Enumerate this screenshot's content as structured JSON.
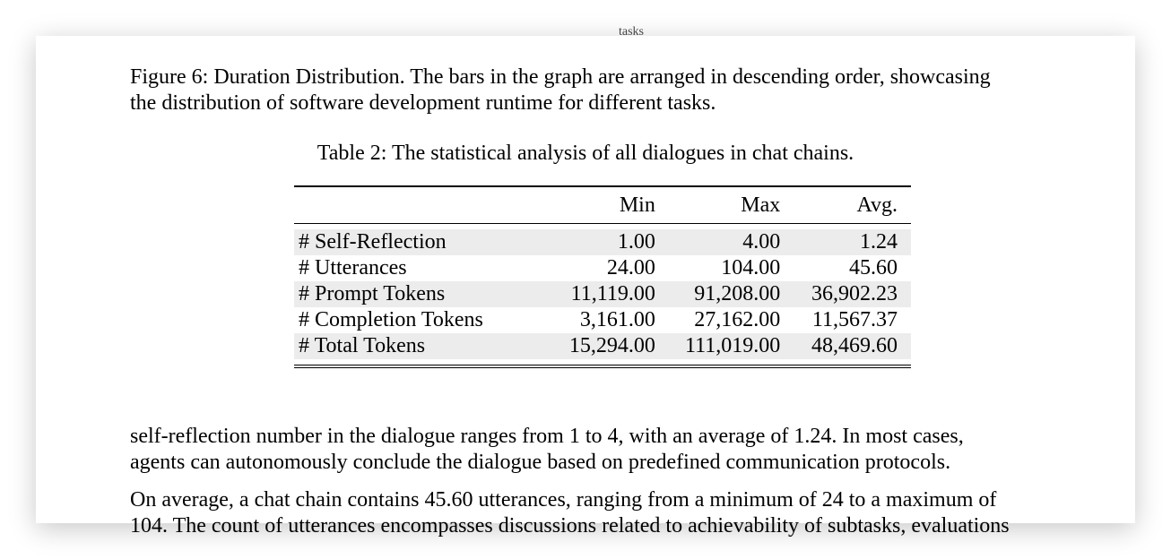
{
  "header_fragment": "tasks",
  "figure_caption": {
    "lines": [
      "Figure 6: Duration Distribution. The bars in the graph are arranged in descending order, showcasing",
      "the distribution of software development runtime for different tasks."
    ]
  },
  "table": {
    "caption": "Table 2: The statistical analysis of all dialogues in chat chains.",
    "columns": [
      "",
      "Min",
      "Max",
      "Avg."
    ],
    "rows": [
      [
        "# Self-Reflection",
        "1.00",
        "4.00",
        "1.24"
      ],
      [
        "# Utterances",
        "24.00",
        "104.00",
        "45.60"
      ],
      [
        "# Prompt Tokens",
        "11,119.00",
        "91,208.00",
        "36,902.23"
      ],
      [
        "# Completion Tokens",
        "3,161.00",
        "27,162.00",
        "11,567.37"
      ],
      [
        "# Total Tokens",
        "15,294.00",
        "111,019.00",
        "48,469.60"
      ]
    ]
  },
  "paragraphs": [
    {
      "lines": [
        "self-reflection number in the dialogue ranges from 1 to 4, with an average of 1.24. In most cases,",
        "agents can autonomously conclude the dialogue based on predefined communication protocols."
      ]
    },
    {
      "lines": [
        "On average, a chat chain contains 45.60 utterances, ranging from a minimum of 24 to a maximum of",
        "104. The count of utterances encompasses discussions related to achievability of subtasks, evaluations"
      ]
    }
  ]
}
